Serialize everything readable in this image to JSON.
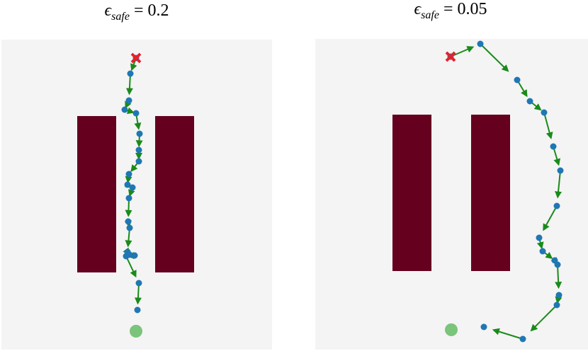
{
  "panels": [
    {
      "symbol": "ϵ",
      "subscript": "safe",
      "rest": " = 0.2"
    },
    {
      "symbol": "ϵ",
      "subscript": "safe",
      "rest": " = 0.05"
    }
  ]
}
